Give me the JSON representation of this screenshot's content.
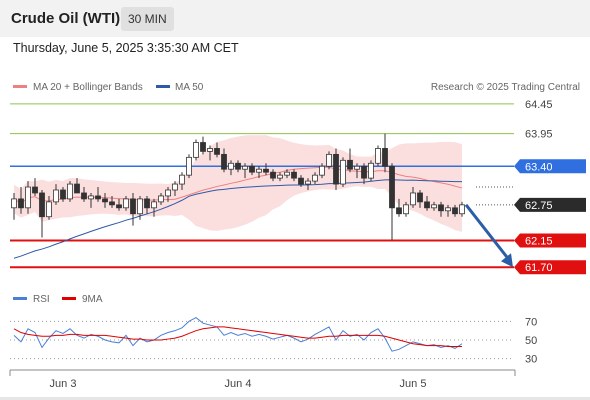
{
  "header": {
    "title": "Crude Oil (WTI)",
    "timeframe": "30 MIN"
  },
  "timestamp": "Thursday, June 5, 2025 3:35:30 AM CET",
  "legend": {
    "ma20": "MA 20 + Bollinger Bands",
    "ma50": "MA 50",
    "ma20_color": "#f08080",
    "ma50_color": "#2e5aa8",
    "source": "Research © 2025 Trading Central"
  },
  "rsi_legend": {
    "rsi": "RSI",
    "ma": "9MA",
    "rsi_color": "#4a7fd4",
    "ma_color": "#e00000"
  },
  "chart_data": {
    "type": "candlestick",
    "ylim": [
      61.4,
      64.6
    ],
    "levels": [
      {
        "value": 64.45,
        "label": "64.45",
        "kind": "resistance"
      },
      {
        "value": 63.95,
        "label": "63.95",
        "kind": "resistance"
      },
      {
        "value": 63.4,
        "label": "63.40",
        "kind": "pivot"
      },
      {
        "value": 62.75,
        "label": "62.75",
        "kind": "last"
      },
      {
        "value": 62.15,
        "label": "62.15",
        "kind": "support"
      },
      {
        "value": 61.7,
        "label": "61.70",
        "kind": "support"
      }
    ],
    "level_colors": {
      "resistance": "#8cc34a",
      "pivot": "#2f6fe0",
      "last": "#2b2b2b",
      "support": "#e01010"
    },
    "candles": [
      [
        62.7,
        62.95,
        62.5,
        62.85
      ],
      [
        62.85,
        63.05,
        62.6,
        62.7
      ],
      [
        62.7,
        63.15,
        62.6,
        63.05
      ],
      [
        63.05,
        63.2,
        62.9,
        62.95
      ],
      [
        62.95,
        63.0,
        62.2,
        62.55
      ],
      [
        62.55,
        62.9,
        62.5,
        62.8
      ],
      [
        62.8,
        63.1,
        62.75,
        63.0
      ],
      [
        63.0,
        63.05,
        62.8,
        62.85
      ],
      [
        62.85,
        63.15,
        62.8,
        63.1
      ],
      [
        63.1,
        63.2,
        62.95,
        62.95
      ],
      [
        62.95,
        63.05,
        62.8,
        62.85
      ],
      [
        62.85,
        62.95,
        62.7,
        62.9
      ],
      [
        62.9,
        63.05,
        62.8,
        62.85
      ],
      [
        62.85,
        62.95,
        62.7,
        62.8
      ],
      [
        62.8,
        62.9,
        62.7,
        62.75
      ],
      [
        62.75,
        62.85,
        62.65,
        62.7
      ],
      [
        62.7,
        62.9,
        62.65,
        62.85
      ],
      [
        62.85,
        62.95,
        62.4,
        62.6
      ],
      [
        62.6,
        62.9,
        62.5,
        62.85
      ],
      [
        62.85,
        62.9,
        62.6,
        62.7
      ],
      [
        62.7,
        62.85,
        62.55,
        62.8
      ],
      [
        62.8,
        62.95,
        62.75,
        62.9
      ],
      [
        62.9,
        63.05,
        62.8,
        63.0
      ],
      [
        63.0,
        63.15,
        62.9,
        63.1
      ],
      [
        63.1,
        63.3,
        63.0,
        63.25
      ],
      [
        63.25,
        63.6,
        63.2,
        63.55
      ],
      [
        63.55,
        63.85,
        63.5,
        63.8
      ],
      [
        63.8,
        63.9,
        63.6,
        63.65
      ],
      [
        63.65,
        63.75,
        63.5,
        63.7
      ],
      [
        63.7,
        63.8,
        63.55,
        63.6
      ],
      [
        63.6,
        63.7,
        63.3,
        63.35
      ],
      [
        63.35,
        63.5,
        63.25,
        63.45
      ],
      [
        63.45,
        63.5,
        63.3,
        63.35
      ],
      [
        63.35,
        63.45,
        63.2,
        63.4
      ],
      [
        63.4,
        63.45,
        63.25,
        63.3
      ],
      [
        63.3,
        63.4,
        63.2,
        63.35
      ],
      [
        63.35,
        63.45,
        63.25,
        63.3
      ],
      [
        63.3,
        63.35,
        63.15,
        63.2
      ],
      [
        63.2,
        63.3,
        63.15,
        63.25
      ],
      [
        63.25,
        63.35,
        63.2,
        63.3
      ],
      [
        63.3,
        63.35,
        63.15,
        63.2
      ],
      [
        63.2,
        63.25,
        63.05,
        63.1
      ],
      [
        63.1,
        63.2,
        63.0,
        63.15
      ],
      [
        63.15,
        63.3,
        63.1,
        63.25
      ],
      [
        63.25,
        63.45,
        63.2,
        63.4
      ],
      [
        63.4,
        63.65,
        63.35,
        63.6
      ],
      [
        63.6,
        63.7,
        63.0,
        63.1
      ],
      [
        63.1,
        63.55,
        63.05,
        63.5
      ],
      [
        63.5,
        63.7,
        63.3,
        63.35
      ],
      [
        63.35,
        63.45,
        63.2,
        63.4
      ],
      [
        63.4,
        63.45,
        63.1,
        63.2
      ],
      [
        63.2,
        63.5,
        63.15,
        63.45
      ],
      [
        63.45,
        63.75,
        63.4,
        63.7
      ],
      [
        63.7,
        63.95,
        63.3,
        63.4
      ],
      [
        63.4,
        63.45,
        62.15,
        62.7
      ],
      [
        62.7,
        62.85,
        62.55,
        62.6
      ],
      [
        62.6,
        62.8,
        62.55,
        62.75
      ],
      [
        62.75,
        63.05,
        62.7,
        62.95
      ],
      [
        62.95,
        63.0,
        62.7,
        62.8
      ],
      [
        62.8,
        62.9,
        62.65,
        62.7
      ],
      [
        62.7,
        62.8,
        62.65,
        62.75
      ],
      [
        62.75,
        62.8,
        62.55,
        62.65
      ],
      [
        62.65,
        62.75,
        62.55,
        62.7
      ],
      [
        62.7,
        62.75,
        62.55,
        62.6
      ],
      [
        62.6,
        62.8,
        62.55,
        62.75
      ]
    ],
    "rsi": {
      "ylim": [
        20,
        80
      ],
      "ticks": [
        "70",
        "50",
        "30"
      ],
      "rsi_values": [
        55,
        48,
        62,
        58,
        42,
        52,
        60,
        57,
        62,
        55,
        52,
        56,
        54,
        50,
        48,
        47,
        55,
        44,
        52,
        48,
        50,
        55,
        58,
        60,
        63,
        70,
        74,
        68,
        66,
        64,
        55,
        58,
        55,
        57,
        54,
        56,
        54,
        51,
        53,
        55,
        52,
        48,
        51,
        56,
        60,
        64,
        50,
        60,
        54,
        56,
        50,
        58,
        62,
        52,
        38,
        40,
        44,
        48,
        46,
        44,
        45,
        42,
        44,
        41,
        46
      ],
      "ma_values": [
        62,
        58,
        56,
        55,
        54,
        54,
        55,
        55,
        56,
        56,
        55,
        55,
        55,
        55,
        54,
        53,
        52,
        51,
        51,
        50,
        50,
        50,
        51,
        52,
        54,
        57,
        60,
        62,
        63,
        64,
        64,
        63,
        62,
        61,
        60,
        59,
        58,
        57,
        56,
        55,
        54,
        53,
        52,
        52,
        53,
        54,
        54,
        55,
        55,
        55,
        55,
        55,
        55,
        54,
        52,
        50,
        48,
        46,
        45,
        44,
        44,
        44,
        43,
        43,
        43
      ]
    },
    "x_ticks": [
      {
        "index": 7,
        "label": "Jun 3"
      },
      {
        "index": 32,
        "label": "Jun 4"
      },
      {
        "index": 57,
        "label": "Jun 5"
      }
    ]
  }
}
